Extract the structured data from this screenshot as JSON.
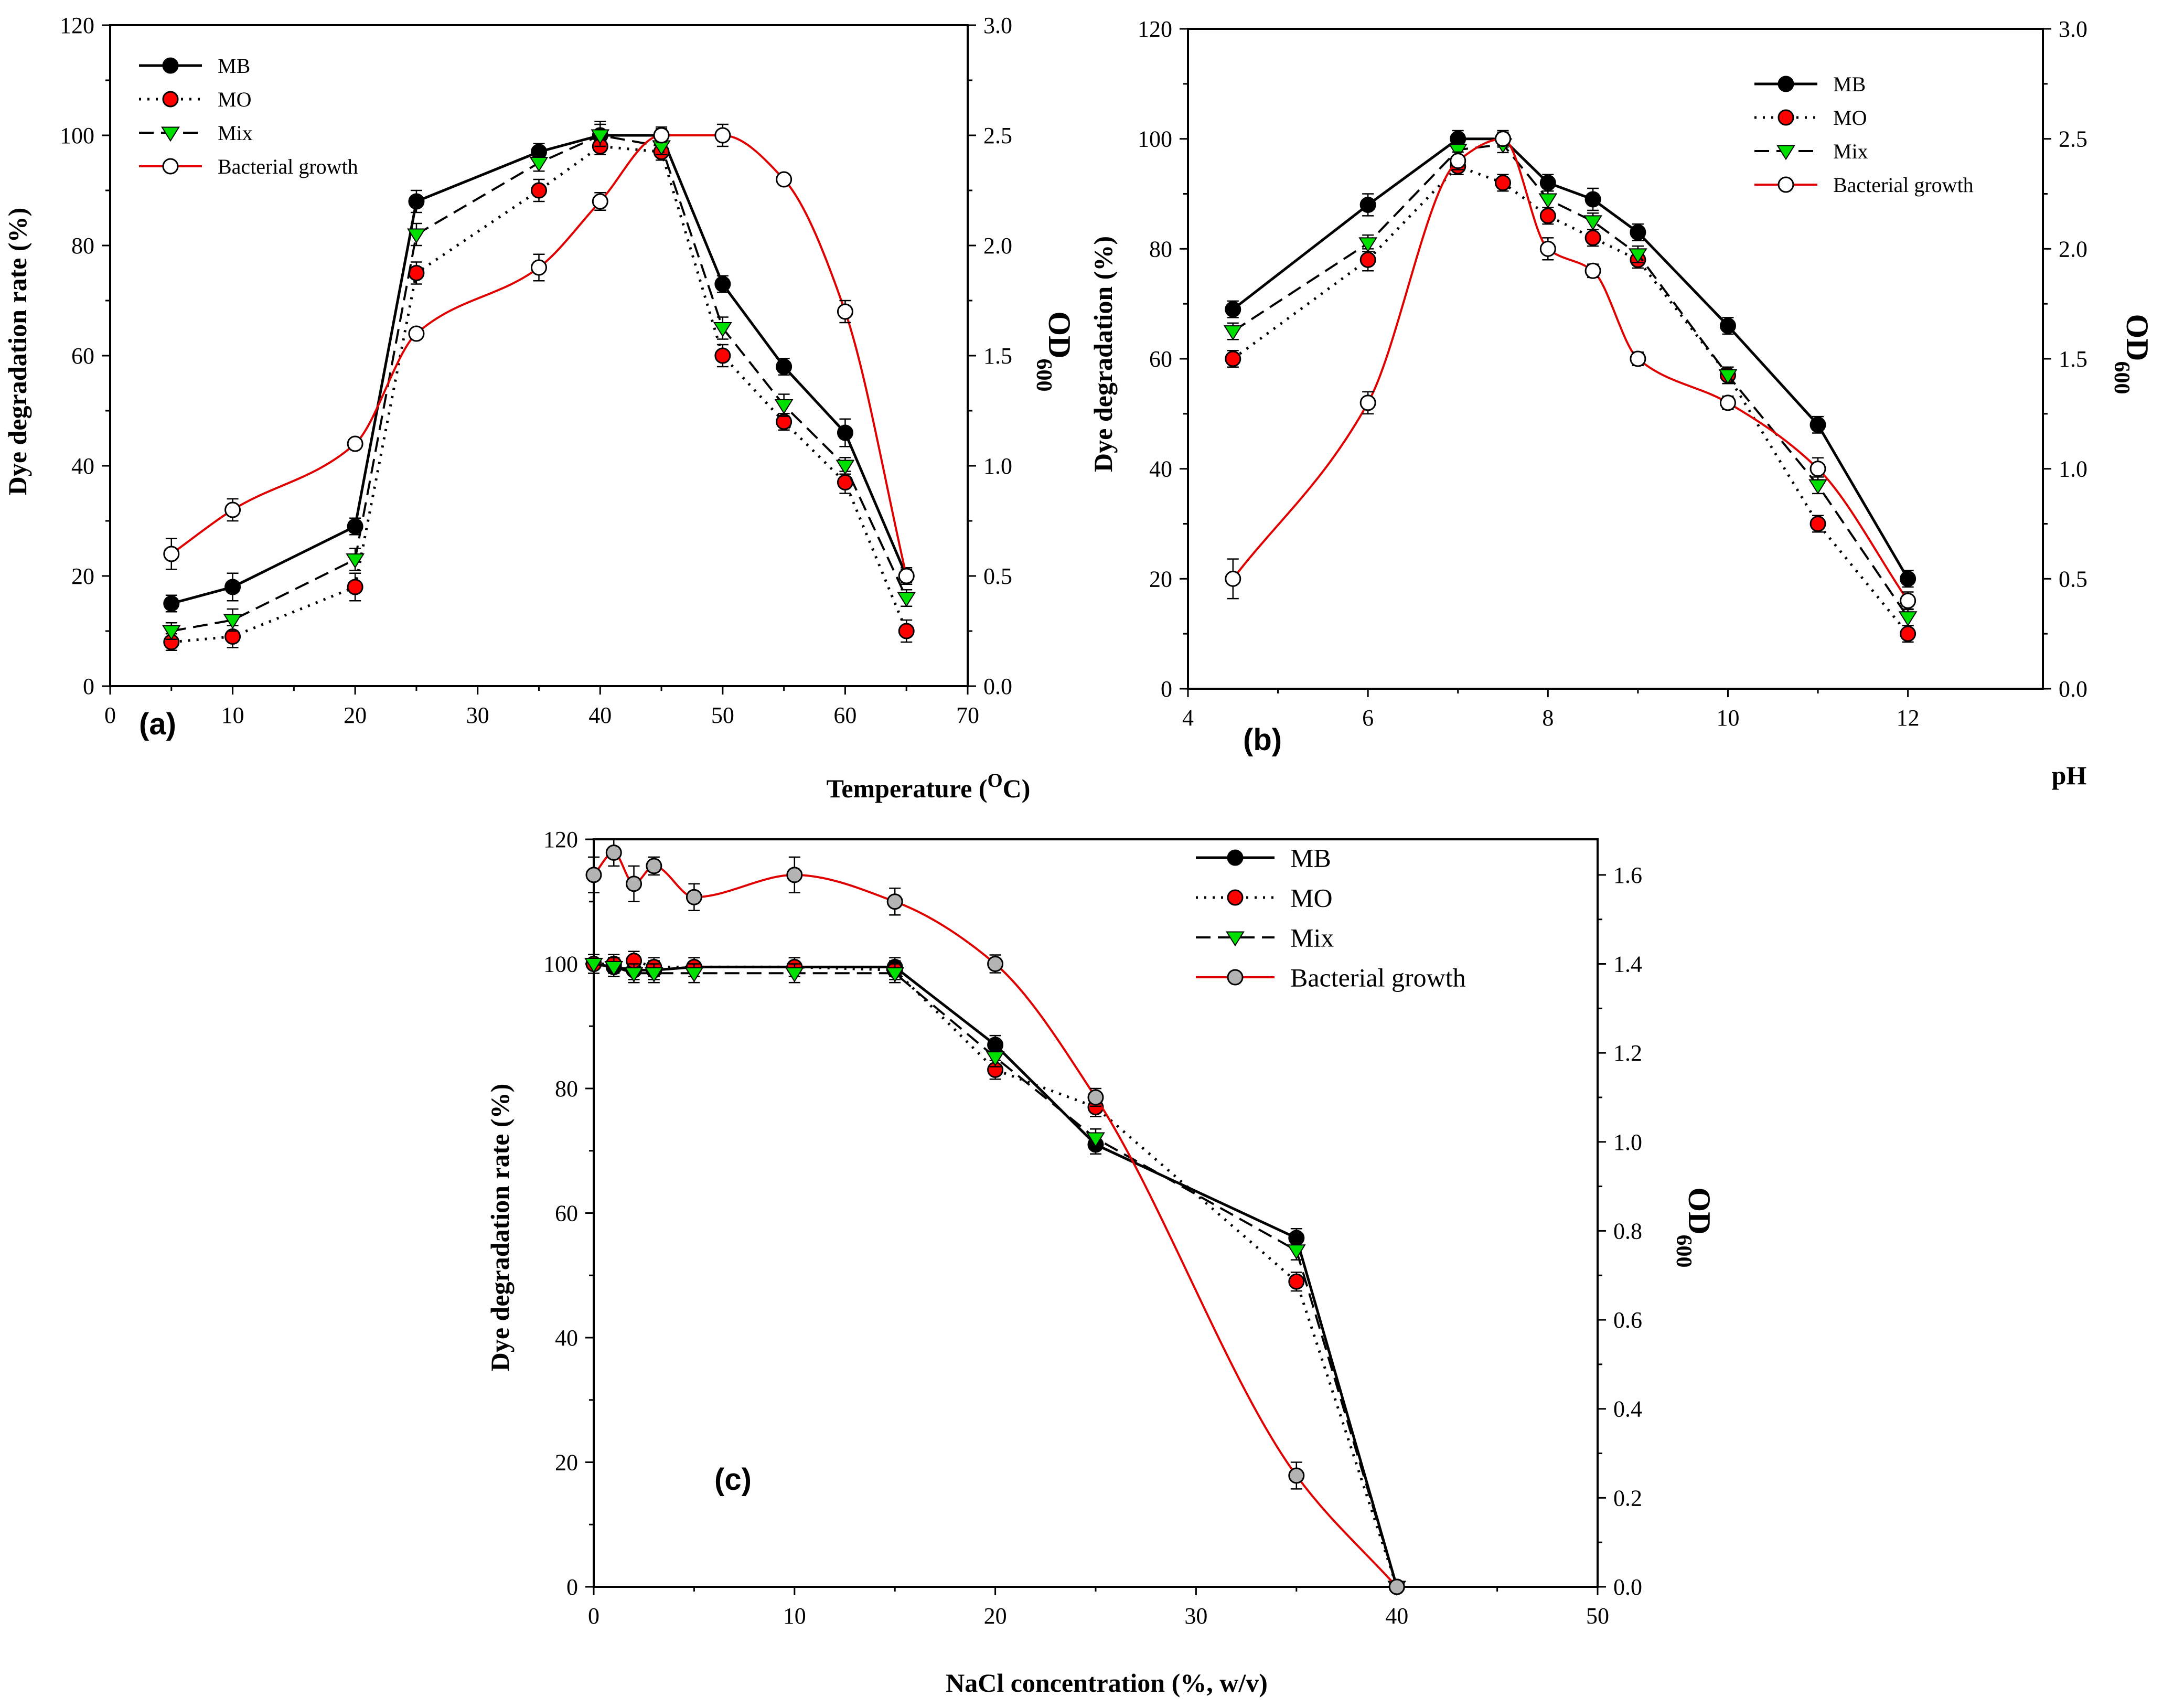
{
  "chart_data": [
    {
      "type": "line",
      "panel_label": "(a)",
      "xlabel": "Temperature (",
      "xlabel_sup": "O",
      "xlabel_tail": "C)",
      "ylabel": "Dye degradation rate (%)",
      "y2label": "OD",
      "y2label_sub": "600",
      "xlim": [
        0,
        70
      ],
      "ylim": [
        0,
        120
      ],
      "y2lim": [
        0,
        3.0
      ],
      "x_ticks": [
        "0",
        "10",
        "20",
        "30",
        "40",
        "50",
        "60",
        "70"
      ],
      "y_ticks": [
        "0",
        "20",
        "40",
        "60",
        "80",
        "100",
        "120"
      ],
      "y2_ticks": [
        "0.0",
        "0.5",
        "1.0",
        "1.5",
        "2.0",
        "2.5",
        "3.0"
      ],
      "legend_position": "top-left",
      "series": [
        {
          "name": "MB",
          "axis": "left",
          "x": [
            5,
            10,
            20,
            25,
            35,
            40,
            45,
            50,
            55,
            60,
            65
          ],
          "values": [
            15,
            18,
            29,
            88,
            97,
            100,
            100,
            73,
            58,
            46,
            20
          ],
          "errors": [
            1.5,
            2.5,
            1.5,
            2,
            1.5,
            2.5,
            1.5,
            1.5,
            1.5,
            2.5,
            1.5
          ]
        },
        {
          "name": "MO",
          "axis": "left",
          "x": [
            5,
            10,
            20,
            25,
            35,
            40,
            45,
            50,
            55,
            60,
            65
          ],
          "values": [
            8,
            9,
            18,
            75,
            90,
            98,
            97,
            60,
            48,
            37,
            10
          ],
          "errors": [
            1.5,
            2,
            2.5,
            2,
            2,
            1.5,
            1.5,
            2,
            1.5,
            2,
            2
          ]
        },
        {
          "name": "Mix",
          "axis": "left",
          "x": [
            5,
            10,
            20,
            25,
            35,
            40,
            45,
            50,
            55,
            60,
            65
          ],
          "values": [
            10,
            12,
            23,
            82,
            95,
            100,
            98,
            65,
            51,
            40,
            16
          ],
          "errors": [
            1.5,
            2,
            2,
            2,
            1.5,
            2,
            1.5,
            2,
            2,
            1.5,
            1.5
          ]
        },
        {
          "name": "Bacterial growth",
          "axis": "right",
          "x": [
            5,
            10,
            20,
            25,
            35,
            40,
            45,
            50,
            55,
            60,
            65
          ],
          "values": [
            0.6,
            0.8,
            1.1,
            1.6,
            1.9,
            2.2,
            2.5,
            2.5,
            2.3,
            1.7,
            0.5
          ],
          "errors": [
            0.07,
            0.05,
            0.02,
            0.02,
            0.06,
            0.04,
            0.03,
            0.05,
            0.02,
            0.05,
            0.03
          ]
        }
      ]
    },
    {
      "type": "line",
      "panel_label": "(b)",
      "xlabel": "pH",
      "ylabel": "Dye degradation (%)",
      "y2label": "OD",
      "y2label_sub": "600",
      "xlim": [
        4,
        13.5
      ],
      "ylim": [
        0,
        120
      ],
      "y2lim": [
        0,
        3.0
      ],
      "x_ticks": [
        "4",
        "6",
        "8",
        "10",
        "12"
      ],
      "y_ticks": [
        "0",
        "20",
        "40",
        "60",
        "80",
        "100",
        "120"
      ],
      "y2_ticks": [
        "0.0",
        "0.5",
        "1.0",
        "1.5",
        "2.0",
        "2.5",
        "3.0"
      ],
      "legend_position": "top-right",
      "series": [
        {
          "name": "MB",
          "axis": "left",
          "x": [
            4.5,
            6,
            7,
            7.5,
            8,
            8.5,
            9,
            10,
            11,
            12
          ],
          "values": [
            69,
            88,
            100,
            100,
            92,
            89,
            83,
            66,
            48,
            20
          ],
          "errors": [
            1.5,
            2,
            1.5,
            1.5,
            1.5,
            2,
            1.5,
            1.5,
            1.5,
            1.5
          ]
        },
        {
          "name": "MO",
          "axis": "left",
          "x": [
            4.5,
            6,
            7,
            7.5,
            8,
            8.5,
            9,
            10,
            11,
            12
          ],
          "values": [
            60,
            78,
            95,
            92,
            86,
            82,
            78,
            57,
            30,
            10
          ],
          "errors": [
            1.5,
            2,
            1.5,
            1.5,
            1.5,
            1.5,
            1.5,
            1.5,
            1.5,
            1.5
          ]
        },
        {
          "name": "Mix",
          "axis": "left",
          "x": [
            4.5,
            6,
            7,
            7.5,
            8,
            8.5,
            9,
            10,
            11,
            12
          ],
          "values": [
            65,
            81,
            98,
            99,
            89,
            85,
            79,
            57,
            37,
            13
          ],
          "errors": [
            1.5,
            1.5,
            1.5,
            1.5,
            1.5,
            1.5,
            1.5,
            1.5,
            1.5,
            1.5
          ]
        },
        {
          "name": "Bacterial growth",
          "axis": "right",
          "x": [
            4.5,
            6,
            7,
            7.5,
            8,
            8.5,
            9,
            10,
            11,
            12
          ],
          "values": [
            0.5,
            1.3,
            2.4,
            2.5,
            2.0,
            1.9,
            1.5,
            1.3,
            1.0,
            0.4
          ],
          "errors": [
            0.09,
            0.05,
            0.04,
            0.03,
            0.05,
            0.03,
            0.03,
            0.03,
            0.05,
            0.04
          ]
        }
      ]
    },
    {
      "type": "line",
      "panel_label": "(c)",
      "xlabel": "NaCl concentration (%, w/v)",
      "ylabel": "Dye degradation rate (%)",
      "y2label": "OD",
      "y2label_sub": "600",
      "xlim": [
        0,
        50
      ],
      "ylim": [
        0,
        120
      ],
      "y2lim": [
        0,
        1.68
      ],
      "x_ticks": [
        "0",
        "10",
        "20",
        "30",
        "40",
        "50"
      ],
      "y_ticks": [
        "0",
        "20",
        "40",
        "60",
        "80",
        "100",
        "120"
      ],
      "y2_ticks": [
        "0.0",
        "0.2",
        "0.4",
        "0.6",
        "0.8",
        "1.0",
        "1.2",
        "1.4",
        "1.6"
      ],
      "legend_position": "top-right",
      "series": [
        {
          "name": "MB",
          "axis": "left",
          "x": [
            0,
            1,
            2,
            3,
            5,
            10,
            15,
            20,
            25,
            35,
            40
          ],
          "values": [
            100,
            99.5,
            99,
            99,
            99.5,
            99.5,
            99.5,
            87,
            71,
            56,
            0
          ],
          "errors": [
            1.5,
            1.5,
            1.5,
            1.5,
            1.5,
            1.5,
            1.5,
            1.5,
            1.5,
            1.5,
            0
          ]
        },
        {
          "name": "MO",
          "axis": "left",
          "x": [
            0,
            1,
            2,
            3,
            5,
            10,
            15,
            20,
            25,
            35,
            40
          ],
          "values": [
            100,
            100,
            100.5,
            99.5,
            99.5,
            99.5,
            99,
            83,
            77,
            49,
            0
          ],
          "errors": [
            1.5,
            1.5,
            1.5,
            1.5,
            1.5,
            1.5,
            1.5,
            1.5,
            1.5,
            1.5,
            0
          ]
        },
        {
          "name": "Mix",
          "axis": "left",
          "x": [
            0,
            1,
            2,
            3,
            5,
            10,
            15,
            20,
            25,
            35,
            40
          ],
          "values": [
            100,
            99.5,
            98.5,
            98.5,
            98.5,
            98.5,
            98.5,
            85,
            72,
            54,
            0
          ],
          "errors": [
            1.5,
            1.5,
            1.5,
            1.5,
            1.5,
            1.5,
            1.5,
            1.5,
            1.5,
            1.5,
            0
          ]
        },
        {
          "name": "Bacterial growth",
          "axis": "right",
          "x": [
            0,
            1,
            2,
            3,
            5,
            10,
            15,
            20,
            25,
            35,
            40
          ],
          "values": [
            1.6,
            1.65,
            1.58,
            1.62,
            1.55,
            1.6,
            1.54,
            1.4,
            1.1,
            0.25,
            0.0
          ],
          "errors": [
            0.04,
            0.03,
            0.04,
            0.02,
            0.03,
            0.04,
            0.03,
            0.02,
            0.02,
            0.03,
            0
          ]
        }
      ]
    }
  ],
  "style": {
    "mb_color": "#000000",
    "mo_color": "#ff0000",
    "mix_color": "#00e000",
    "growth_line_color": "#e00000",
    "growth_marker_fill_ab": "#ffffff",
    "growth_marker_fill_c": "#b3b3b3",
    "axis_color": "#000000"
  }
}
